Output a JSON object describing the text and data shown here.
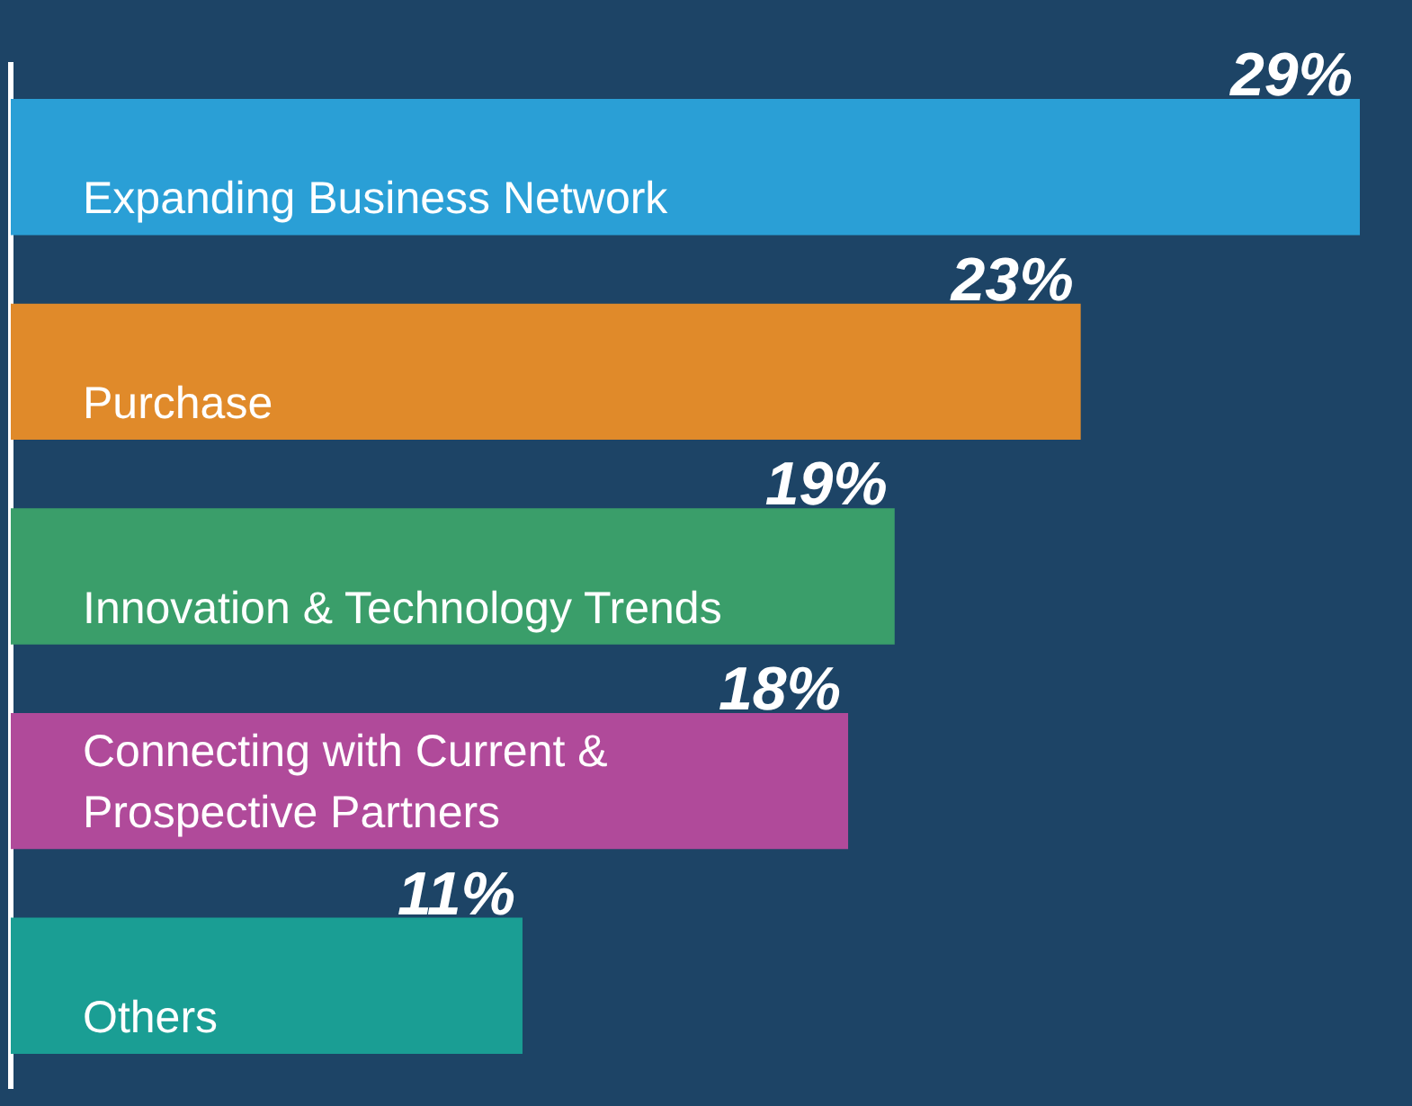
{
  "chart_data": {
    "type": "bar",
    "orientation": "horizontal",
    "categories": [
      "Expanding Business Network",
      "Purchase",
      "Innovation & Technology Trends",
      "Connecting with Current & Prospective Partners",
      "Others"
    ],
    "values": [
      29,
      23,
      19,
      18,
      11
    ],
    "colors": [
      "#2a9fd6",
      "#e08a2a",
      "#3a9e6a",
      "#b04a9a",
      "#1a9e94"
    ],
    "value_labels": [
      "29%",
      "23%",
      "19%",
      "18%",
      "11%"
    ],
    "legend": false
  }
}
